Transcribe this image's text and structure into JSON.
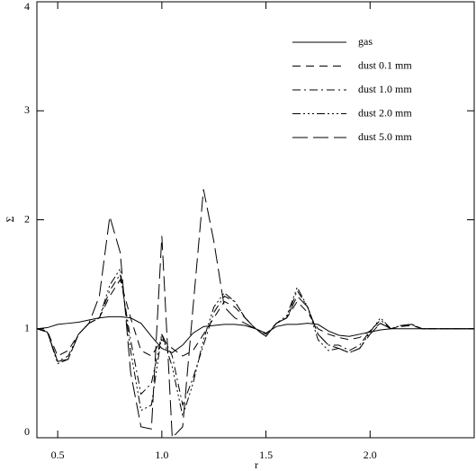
{
  "chart_data": {
    "type": "line",
    "xlabel": "r",
    "ylabel": "Σ",
    "x": [
      0.4,
      0.45,
      0.5,
      0.55,
      0.6,
      0.65,
      0.7,
      0.75,
      0.8,
      0.85,
      0.9,
      0.95,
      1.0,
      1.05,
      1.1,
      1.15,
      1.2,
      1.25,
      1.3,
      1.35,
      1.4,
      1.45,
      1.5,
      1.55,
      1.6,
      1.65,
      1.7,
      1.75,
      1.8,
      1.85,
      1.9,
      1.95,
      2.0,
      2.05,
      2.1,
      2.15,
      2.2,
      2.25,
      2.3,
      2.35,
      2.4,
      2.45,
      2.5
    ],
    "series": [
      {
        "name": "gas",
        "color": "#000000",
        "dash": "solid",
        "values": [
          1.0,
          1.01,
          1.04,
          1.05,
          1.06,
          1.08,
          1.1,
          1.11,
          1.11,
          1.1,
          1.05,
          0.93,
          0.82,
          0.78,
          0.85,
          0.96,
          1.02,
          1.03,
          1.04,
          1.04,
          1.03,
          1.0,
          0.96,
          1.02,
          1.04,
          1.04,
          1.05,
          1.04,
          0.98,
          0.94,
          0.93,
          0.95,
          0.97,
          0.99,
          1.0,
          1.0,
          1.0,
          1.0,
          1.0,
          1.0,
          1.0,
          1.0,
          1.0
        ]
      },
      {
        "name": "dust 0.1 mm",
        "color": "#000000",
        "dash": "dashed",
        "values": [
          1.0,
          0.98,
          0.75,
          0.8,
          0.95,
          1.05,
          1.1,
          1.3,
          1.45,
          1.1,
          0.8,
          0.75,
          0.9,
          0.82,
          0.75,
          0.8,
          0.95,
          1.1,
          1.25,
          1.2,
          1.1,
          1.0,
          0.95,
          1.05,
          1.1,
          1.25,
          1.15,
          1.0,
          0.95,
          0.92,
          0.9,
          0.92,
          0.98,
          1.05,
          1.0,
          1.02,
          1.03,
          1.0,
          1.0,
          1.0,
          1.0,
          1.0,
          1.0
        ]
      },
      {
        "name": "dust 1.0 mm",
        "color": "#000000",
        "dash": "dashdot",
        "values": [
          1.0,
          0.97,
          0.7,
          0.75,
          0.95,
          1.05,
          1.1,
          1.35,
          1.5,
          0.9,
          0.4,
          0.5,
          0.95,
          0.75,
          0.3,
          0.55,
          0.85,
          1.15,
          1.3,
          1.25,
          1.1,
          1.0,
          0.93,
          1.05,
          1.1,
          1.35,
          1.2,
          0.95,
          0.85,
          0.85,
          0.8,
          0.85,
          0.98,
          1.08,
          1.0,
          1.03,
          1.04,
          1.0,
          1.0,
          1.0,
          1.0,
          1.0,
          1.0
        ]
      },
      {
        "name": "dust 2.0 mm",
        "color": "#000000",
        "dash": "dashdotdotdot",
        "values": [
          1.0,
          0.97,
          0.68,
          0.72,
          0.95,
          1.05,
          1.1,
          1.4,
          1.55,
          0.8,
          0.25,
          0.3,
          0.95,
          0.65,
          0.2,
          0.5,
          0.9,
          1.2,
          1.33,
          1.25,
          1.1,
          1.0,
          0.93,
          1.05,
          1.12,
          1.38,
          1.2,
          0.9,
          0.8,
          0.82,
          0.78,
          0.82,
          0.97,
          1.1,
          1.0,
          1.03,
          1.04,
          1.0,
          1.0,
          1.0,
          1.0,
          1.0,
          1.0
        ]
      },
      {
        "name": "dust 5.0 mm",
        "color": "#000000",
        "dash": "longdash",
        "values": [
          1.0,
          0.97,
          0.7,
          0.72,
          0.95,
          1.05,
          1.3,
          2.03,
          1.7,
          0.6,
          0.1,
          0.08,
          1.85,
          0.0,
          0.1,
          1.2,
          2.28,
          1.8,
          1.2,
          1.1,
          1.05,
          1.0,
          0.93,
          1.05,
          1.1,
          1.3,
          1.2,
          0.95,
          0.85,
          0.82,
          0.78,
          0.82,
          0.95,
          1.05,
          1.0,
          1.03,
          1.04,
          1.0,
          1.0,
          1.0,
          1.0,
          1.0,
          1.0
        ]
      }
    ],
    "xlim": [
      0.4,
      2.5
    ],
    "ylim": [
      0,
      4
    ],
    "xticks": [
      0.5,
      {
        "value": 1.0,
        "label": "1.0"
      },
      1.5,
      {
        "value": 2.0,
        "label": "2.0"
      }
    ],
    "yticks": [
      0,
      1,
      2,
      3,
      4
    ],
    "grid": false,
    "legend": "upper right"
  }
}
